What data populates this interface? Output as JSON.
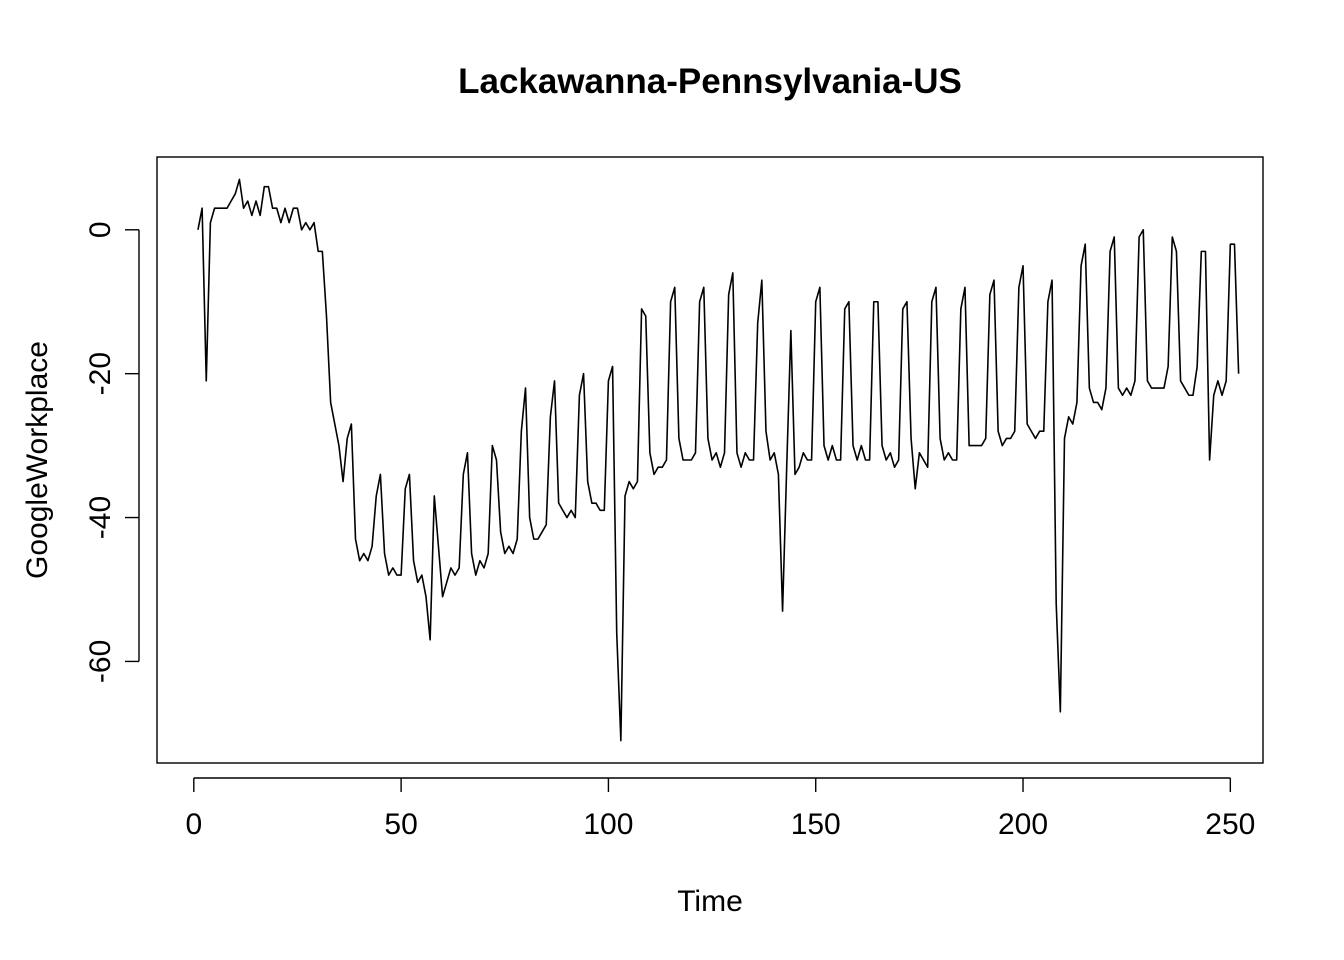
{
  "chart_data": {
    "type": "line",
    "title": "Lackawanna-Pennsylvania-US",
    "xlabel": "Time",
    "ylabel": "GoogleWorkplace",
    "xlim": [
      1,
      248
    ],
    "ylim": [
      -71,
      7
    ],
    "x_ticks": [
      0,
      50,
      100,
      150,
      200,
      250
    ],
    "y_ticks": [
      0,
      -20,
      -40,
      -60
    ],
    "grid": false,
    "legend": "none",
    "series": [
      {
        "color": "#000000",
        "values": [
          0,
          3,
          -21,
          1,
          3,
          3,
          3,
          3,
          4,
          5,
          7,
          3,
          4,
          2,
          4,
          2,
          6,
          6,
          3,
          3,
          1,
          3,
          1,
          3,
          3,
          0,
          1,
          0,
          1,
          -3,
          -3,
          -12,
          -24,
          -27,
          -30,
          -35,
          -29,
          -27,
          -43,
          -46,
          -45,
          -46,
          -44,
          -37,
          -34,
          -45,
          -48,
          -47,
          -48,
          -48,
          -36,
          -34,
          -46,
          -49,
          -48,
          -51,
          -57,
          -37,
          -44,
          -51,
          -49,
          -47,
          -48,
          -47,
          -34,
          -31,
          -45,
          -48,
          -46,
          -47,
          -45,
          -30,
          -32,
          -42,
          -45,
          -44,
          -45,
          -43,
          -28,
          -22,
          -40,
          -43,
          -43,
          -42,
          -41,
          -26,
          -21,
          -38,
          -39,
          -40,
          -39,
          -40,
          -23,
          -20,
          -35,
          -38,
          -38,
          -39,
          -39,
          -21,
          -19,
          -56,
          -71,
          -37,
          -35,
          -36,
          -35,
          -11,
          -12,
          -31,
          -34,
          -33,
          -33,
          -32,
          -10,
          -8,
          -29,
          -32,
          -32,
          -32,
          -31,
          -10,
          -8,
          -29,
          -32,
          -31,
          -33,
          -31,
          -9,
          -6,
          -31,
          -33,
          -31,
          -32,
          -32,
          -13,
          -7,
          -28,
          -32,
          -31,
          -34,
          -53,
          -33,
          -14,
          -34,
          -33,
          -31,
          -32,
          -32,
          -10,
          -8,
          -30,
          -32,
          -30,
          -32,
          -32,
          -11,
          -10,
          -30,
          -32,
          -30,
          -32,
          -32,
          -10,
          -10,
          -30,
          -32,
          -31,
          -33,
          -32,
          -11,
          -10,
          -29,
          -36,
          -31,
          -32,
          -33,
          -10,
          -8,
          -29,
          -32,
          -31,
          -32,
          -32,
          -11,
          -8,
          -30,
          -30,
          -30,
          -30,
          -29,
          -9,
          -7,
          -28,
          -30,
          -29,
          -29,
          -28,
          -8,
          -5,
          -27,
          -28,
          -29,
          -28,
          -28,
          -10,
          -7,
          -52,
          -67,
          -29,
          -26,
          -27,
          -24,
          -5,
          -2,
          -22,
          -24,
          -24,
          -25,
          -22,
          -3,
          -1,
          -22,
          -23,
          -22,
          -23,
          -21,
          -1,
          0,
          -21,
          -22,
          -22,
          -22,
          -22,
          -19,
          -1,
          -3,
          -21,
          -22,
          -23,
          -23,
          -19,
          -3,
          -3,
          -32,
          -23,
          -21,
          -23,
          -21,
          -2,
          -2,
          -20
        ]
      }
    ]
  }
}
